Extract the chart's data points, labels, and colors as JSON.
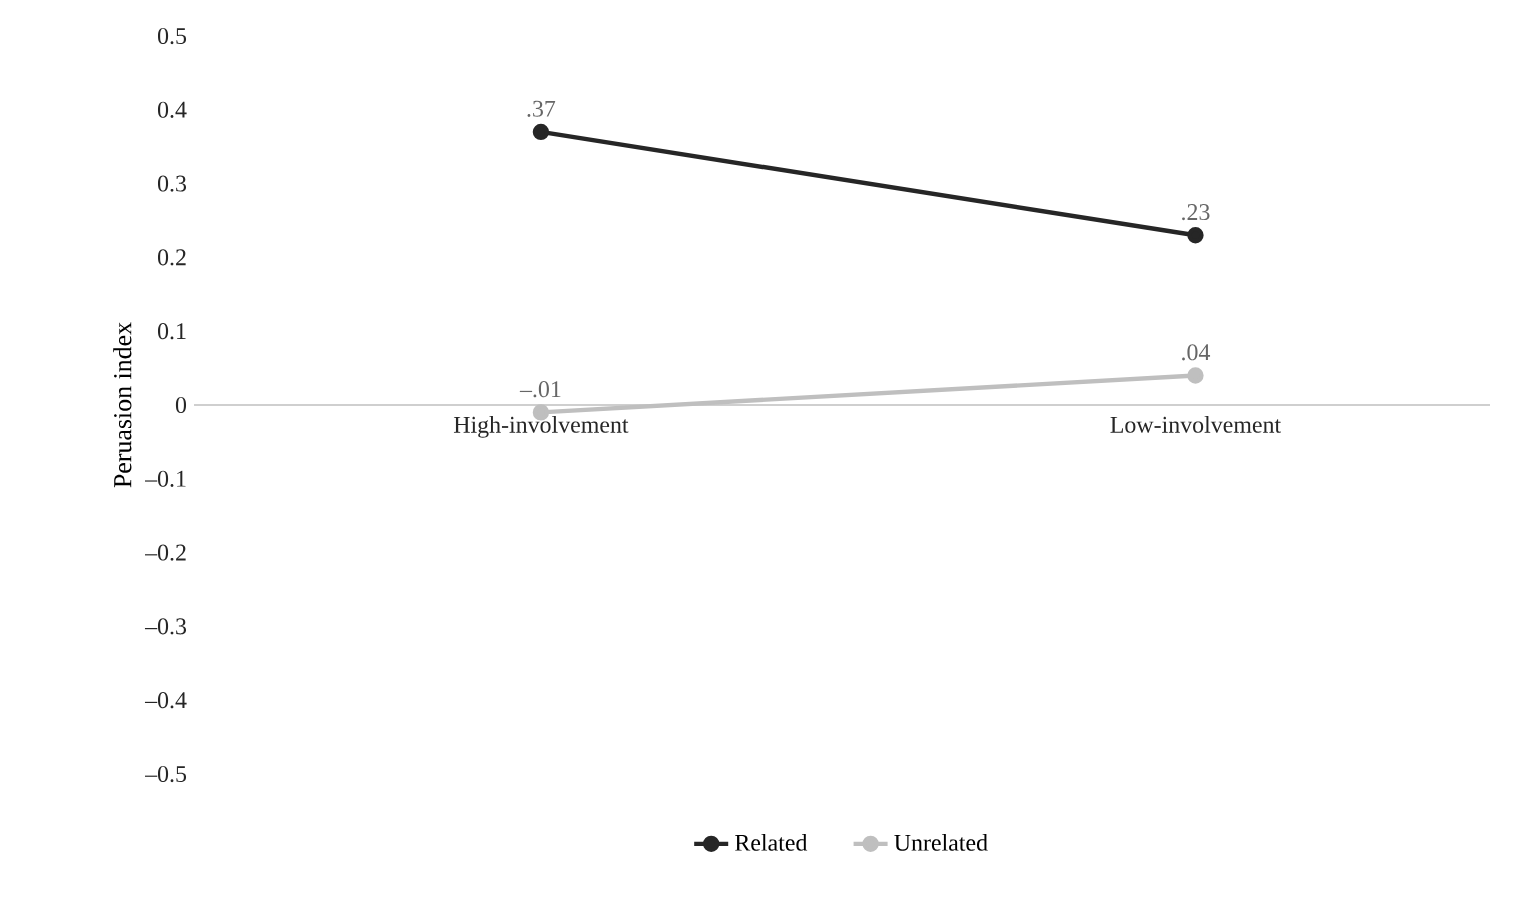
{
  "chart_data": {
    "type": "line",
    "ylabel": "Peruasion index",
    "categories": [
      "High-involvement",
      "Low-involvement"
    ],
    "series": [
      {
        "name": "Related",
        "color": "#262626",
        "values": [
          0.37,
          0.23
        ],
        "value_labels": [
          ".37",
          ".23"
        ]
      },
      {
        "name": "Unrelated",
        "color": "#bfbfbf",
        "values": [
          -0.01,
          0.04
        ],
        "value_labels": [
          "–.01",
          ".04"
        ]
      }
    ],
    "ylim": [
      -0.5,
      0.5
    ],
    "yticks": [
      {
        "value": -0.5,
        "label": "–0.5"
      },
      {
        "value": -0.4,
        "label": "–0.4"
      },
      {
        "value": -0.3,
        "label": "–0.3"
      },
      {
        "value": -0.2,
        "label": "–0.2"
      },
      {
        "value": -0.1,
        "label": "–0.1"
      },
      0,
      0.1,
      0.2,
      0.3,
      0.4,
      0.5
    ],
    "grid": false,
    "legend": "bottom",
    "marker": "circle",
    "line_style": "solid"
  }
}
